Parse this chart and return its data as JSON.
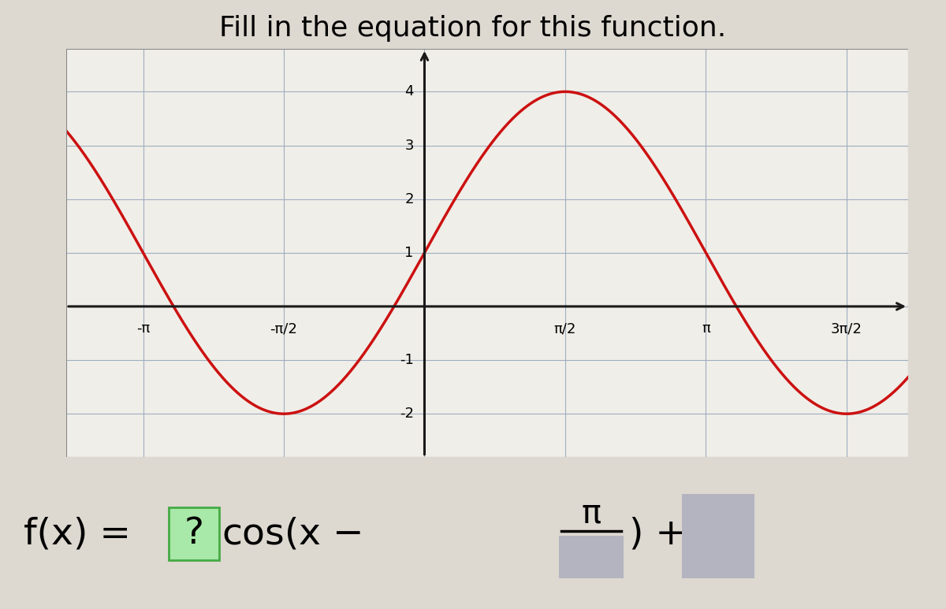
{
  "title": "Fill in the equation for this function.",
  "title_fontsize": 26,
  "bg_color": "#ddd8d0",
  "plot_bg_color": "#f0eee8",
  "grid_color": "#9eaec0",
  "grid_linewidth": 0.8,
  "curve_color": "#cc1111",
  "curve_linewidth": 2.5,
  "axis_color": "#1a1a1a",
  "xlim": [
    -4.0,
    5.4
  ],
  "ylim": [
    -2.8,
    4.8
  ],
  "xticks": [
    -3.14159265,
    -1.5707963,
    1.5707963,
    3.14159265,
    4.71238898
  ],
  "xtick_labels": [
    "-π",
    "-π/2",
    "π/2",
    "π",
    "3π/2"
  ],
  "ytick_vals": [
    -2,
    -1,
    1,
    2,
    3,
    4
  ],
  "ytick_labels": [
    "-2",
    "-1",
    "1",
    "2",
    "3",
    "4"
  ],
  "tick_fontsize": 13,
  "amplitude": 3,
  "phase_shift": 1.5707963,
  "vertical_shift": 1,
  "equation_fontsize": 34,
  "green_box_color": "#a8e8a8",
  "green_box_edge": "#44aa44",
  "gray_box_color": "#b4b4c0",
  "pi_symbol": "π"
}
